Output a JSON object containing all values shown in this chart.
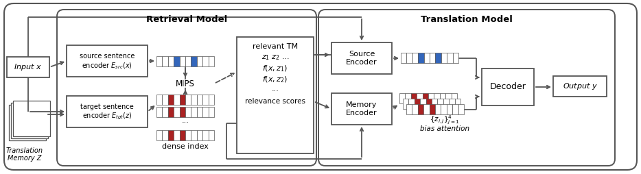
{
  "bg_color": "#ffffff",
  "ec_color": "#555555",
  "blue_color": "#3366bb",
  "red_color": "#aa2222",
  "retrieval_model_label": "Retrieval Model",
  "translation_model_label": "Translation Model",
  "input_label": "Input x",
  "output_label": "Output y",
  "src_encoder_line1": "source sentence",
  "src_encoder_line2": "encoder $E_{src}(x)$",
  "tgt_encoder_line1": "target sentence",
  "tgt_encoder_line2": "encoder $E_{tgt}(z)$",
  "mips_label": "MIPS",
  "dense_index_label": "dense index",
  "relevant_tm_label": "relevant TM",
  "z_label": "$z_1\\ z_2$ ...",
  "fxz1_label": "$f(x, z_1)$",
  "fxz2_label": "$f(x, z_2)$",
  "dots_label": "...",
  "relevance_scores_label": "relevance scores",
  "source_encoder_label": "Source\nEncoder",
  "memory_encoder_label": "Memory\nEncoder",
  "decoder_label": "Decoder",
  "zij_label": "$\\{z_{i,j}\\}_{j=1}^4$",
  "bias_attention_label": "bias attention",
  "tm_memory_line1": "Translation",
  "tm_memory_line2": "Memory Z"
}
